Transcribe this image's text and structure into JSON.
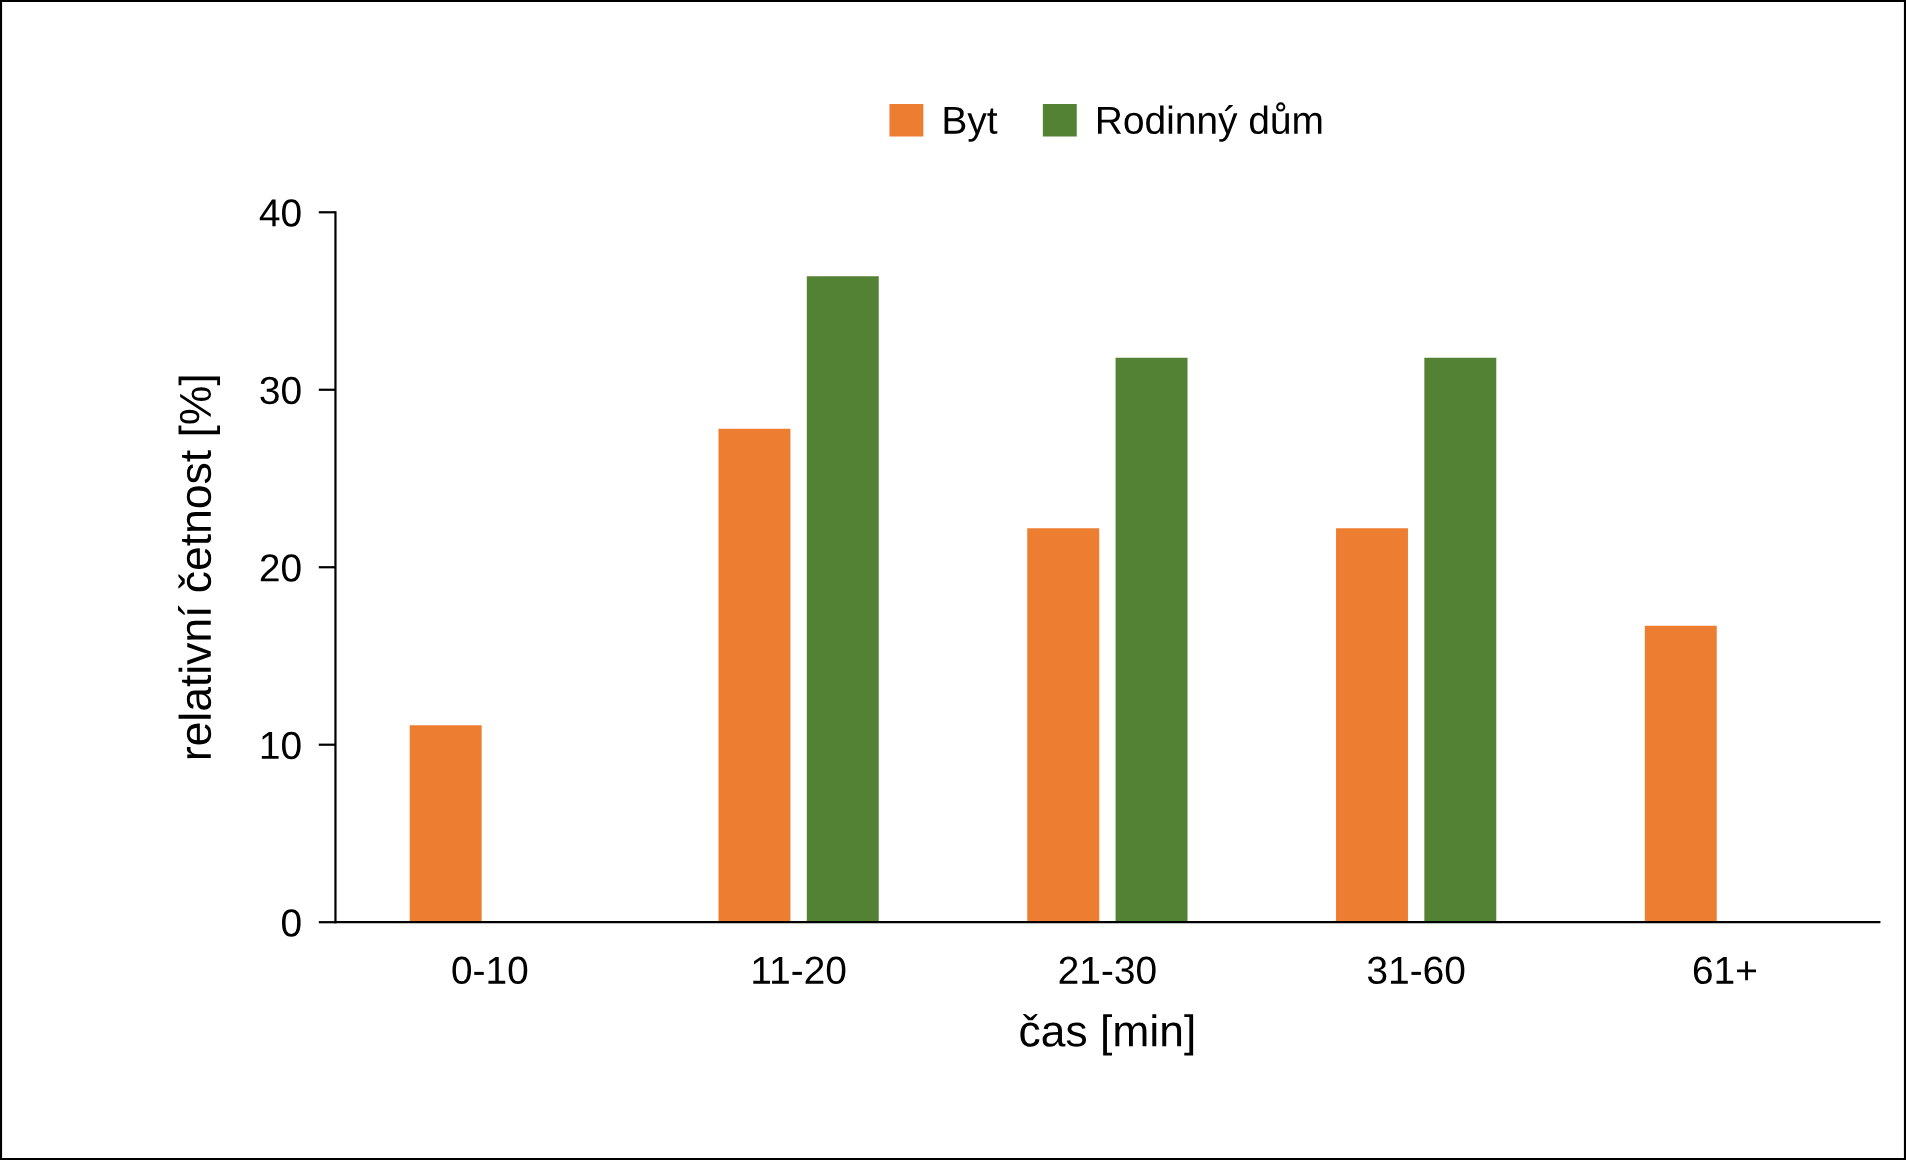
{
  "chart_data": {
    "type": "bar",
    "xlabel": "čas [min]",
    "ylabel": "relativní četnost [%]",
    "categories": [
      "0-10",
      "11-20",
      "21-30",
      "31-60",
      "61+"
    ],
    "series": [
      {
        "name": "Byt",
        "color": "#ed7d31",
        "values": [
          11.1,
          27.8,
          22.2,
          22.2,
          16.7
        ]
      },
      {
        "name": "Rodinný dům",
        "color": "#548235",
        "values": [
          0,
          36.4,
          31.8,
          31.8,
          0
        ]
      }
    ],
    "ylim": [
      0,
      40
    ],
    "yticks": [
      0,
      10,
      20,
      30,
      40
    ],
    "grid": false,
    "legend": "top"
  }
}
